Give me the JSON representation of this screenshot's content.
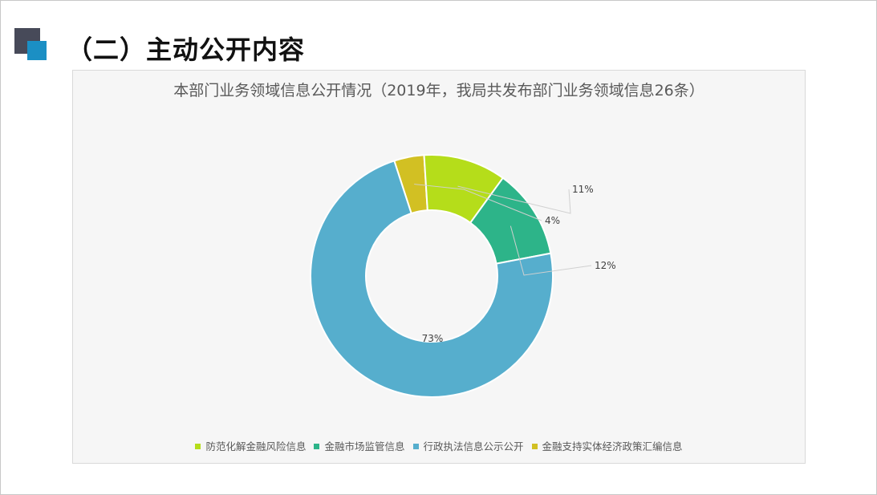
{
  "page": {
    "title": "（二）主动公开内容"
  },
  "chart_data": {
    "type": "pie",
    "title": "本部门业务领域信息公开情况（2019年，我局共发布部门业务领域信息26条）",
    "categories": [
      "防范化解金融风险信息",
      "金融市场监管信息",
      "行政执法信息公示公开",
      "金融支持实体经济政策汇编信息"
    ],
    "values": [
      11,
      12,
      73,
      4
    ],
    "labels": [
      "11%",
      "12%",
      "73%",
      "4%"
    ],
    "colors": [
      "#b5dd1a",
      "#2db489",
      "#56aecd",
      "#d2c023"
    ],
    "slice_order": [
      3,
      0,
      1,
      2
    ],
    "legend_position": "bottom"
  }
}
